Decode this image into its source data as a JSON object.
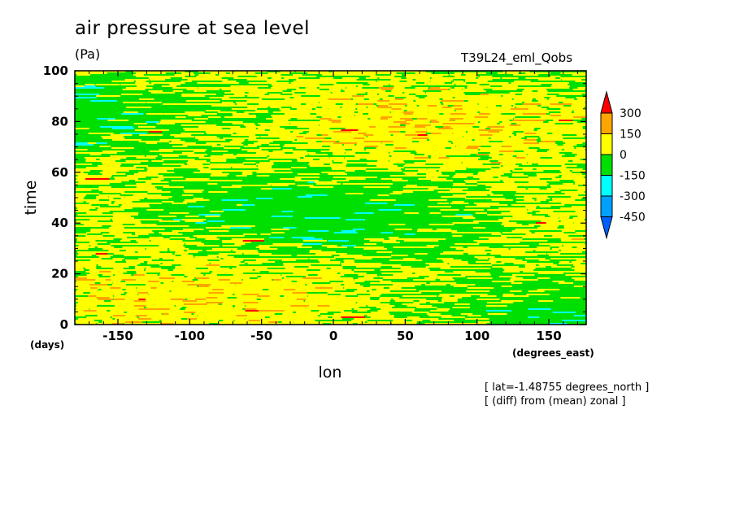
{
  "header": {
    "title": "air pressure at sea level",
    "units": "(Pa)",
    "run_name": "T39L24_eml_Qobs"
  },
  "footer": {
    "note_lat": "[ lat=-1.48755 degrees_north ]",
    "note_diff": "[ (diff) from (mean) zonal ]"
  },
  "chart_data": {
    "type": "heatmap",
    "title": "air pressure at sea level",
    "xlabel": "lon",
    "ylabel": "time",
    "x_units": "(degrees_east)",
    "y_units": "(days)",
    "xlim": [
      -180,
      176
    ],
    "ylim": [
      0,
      100
    ],
    "x_ticks": [
      -150,
      -100,
      -50,
      0,
      50,
      100,
      150
    ],
    "x_tick_labels": [
      "-150",
      "-100",
      "-50",
      "0",
      "50",
      "100",
      "150"
    ],
    "y_ticks": [
      0,
      20,
      40,
      60,
      80,
      100
    ],
    "y_tick_labels": [
      "0",
      "20",
      "40",
      "60",
      "80",
      "100"
    ],
    "colorbar": {
      "levels": [
        300,
        150,
        0,
        -150,
        -300,
        -450
      ],
      "labels": [
        "300",
        "150",
        "0",
        "-150",
        "-300",
        "-450"
      ],
      "colors": [
        "#ff0000",
        "#ffa500",
        "#ffff00",
        "#00e000",
        "#00ffff",
        "#00a0ff",
        "#0060ff"
      ],
      "bands": [
        "> 300",
        "150 to 300",
        "0 to 150",
        "-150 to 0",
        "-300 to -150",
        "-450 to -300",
        "< -450"
      ]
    },
    "pattern_description_values": {
      "dominant_bands": [
        "0 to 150",
        "-150 to 0"
      ],
      "occasional_bands": [
        "150 to 300",
        "-300 to -150"
      ]
    }
  }
}
